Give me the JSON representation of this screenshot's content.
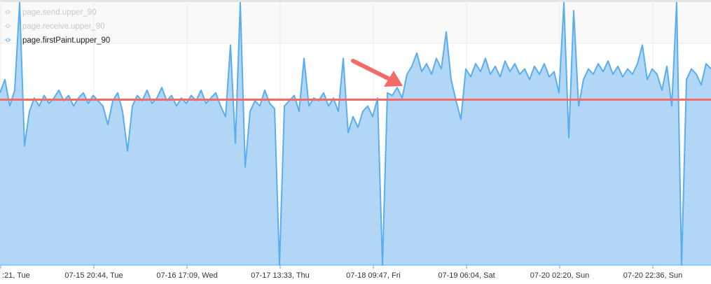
{
  "legend": [
    {
      "label": "page.send.upper_90",
      "active": false,
      "color": "#c8c8c8"
    },
    {
      "label": "page.receive.upper_90",
      "active": false,
      "color": "#c8c8c8"
    },
    {
      "label": "page.firstPaint.upper_90",
      "active": true,
      "color": "#5aaef0"
    }
  ],
  "chart_data": {
    "type": "area",
    "series": [
      {
        "name": "page.firstPaint.upper_90",
        "color": "#5aaef0",
        "fill": "#aed4f4",
        "values": [
          65,
          70,
          60,
          66,
          99,
          45,
          58,
          63,
          60,
          64,
          61,
          63,
          66,
          62,
          64,
          60,
          63,
          65,
          61,
          64,
          62,
          60,
          53,
          62,
          65,
          58,
          43,
          60,
          64,
          62,
          66,
          61,
          63,
          67,
          62,
          64,
          60,
          63,
          61,
          64,
          62,
          66,
          61,
          63,
          65,
          60,
          56,
          83,
          46,
          99,
          37,
          58,
          62,
          60,
          66,
          61,
          59,
          0,
          60,
          62,
          64,
          58,
          78,
          60,
          63,
          62,
          65,
          60,
          63,
          58,
          78,
          50,
          56,
          52,
          58,
          60,
          56,
          63,
          0,
          65,
          64,
          67,
          63,
          72,
          75,
          80,
          73,
          76,
          72,
          78,
          74,
          88,
          70,
          62,
          55,
          74,
          71,
          76,
          73,
          78,
          72,
          75,
          71,
          77,
          73,
          76,
          72,
          74,
          70,
          75,
          72,
          76,
          71,
          73,
          65,
          99,
          48,
          96,
          60,
          70,
          74,
          72,
          76,
          73,
          77,
          72,
          75,
          71,
          74,
          72,
          76,
          83,
          70,
          74,
          72,
          66,
          75,
          60,
          99,
          0,
          70,
          74,
          72,
          68,
          76,
          74
        ]
      }
    ],
    "ylim": [
      0,
      100
    ],
    "x_tick_labels": [
      ":21, Tue",
      "07-15 20:44, Tue",
      "07-16 17:09, Wed",
      "07-17 13:33, Thu",
      "07-18 09:47, Fri",
      "07-19 06:04, Sat",
      "07-20 02:20, Sun",
      "07-20 22:36, Sun"
    ],
    "grid": true,
    "legend_position": "top-left",
    "annotations": {
      "reference_line": {
        "value": 62.4,
        "color": "#f26b66"
      },
      "arrow": {
        "color": "#f26b66",
        "points_to_index": 82
      }
    }
  }
}
